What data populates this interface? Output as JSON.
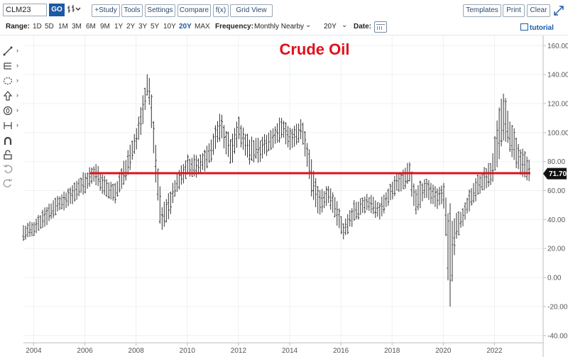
{
  "toolbar": {
    "symbol_value": "CLM23",
    "go_label": "GO",
    "study_label": "+Study",
    "tools_label": "Tools",
    "settings_label": "Settings",
    "compare_label": "Compare",
    "fx_label": "f(x)",
    "gridview_label": "Grid View",
    "templates_label": "Templates",
    "print_label": "Print",
    "clear_label": "Clear"
  },
  "rangebar": {
    "range_label": "Range:",
    "ranges": [
      "1D",
      "5D",
      "1M",
      "3M",
      "6M",
      "9M",
      "1Y",
      "2Y",
      "3Y",
      "5Y",
      "10Y",
      "20Y",
      "MAX"
    ],
    "active_range": "20Y",
    "frequency_label": "Frequency:",
    "frequency_value": "Monthly Nearby",
    "period_value": "20Y",
    "date_label": "Date:",
    "tutorial_label": "tutorial"
  },
  "left_tools": [
    "line-tool-icon",
    "fibonacci-tool-icon",
    "shape-tool-icon",
    "arrow-tool-icon",
    "annotation-tool-icon",
    "measure-tool-icon",
    "magnet-icon",
    "lock-icon",
    "undo-icon",
    "redo-icon"
  ],
  "chart_data": {
    "type": "ohlc",
    "title": "Crude Oil",
    "x_tick_labels": [
      "2004",
      "2006",
      "2008",
      "2010",
      "2012",
      "2014",
      "2016",
      "2018",
      "2020",
      "2022"
    ],
    "y_tick_labels": [
      "160.00",
      "140.00",
      "120.00",
      "100.00",
      "80.00",
      "60.00",
      "40.00",
      "20.00",
      "0.00",
      "-20.00",
      "-40.00"
    ],
    "ylim": [
      -45,
      167
    ],
    "xlim": [
      2003.6,
      2023.9
    ],
    "last_price_label": "71.70",
    "horizontal_line": {
      "x_start": 2006.2,
      "x_end": 2023.4,
      "y": 72,
      "color": "#e0101c"
    },
    "title_color": "#e0101c",
    "bar_color": "#333333",
    "anchors": [
      [
        2003.6,
        31,
        8
      ],
      [
        2004.0,
        34,
        8
      ],
      [
        2004.5,
        43,
        10
      ],
      [
        2004.9,
        50,
        9
      ],
      [
        2005.3,
        53,
        10
      ],
      [
        2005.8,
        63,
        11
      ],
      [
        2006.4,
        72,
        11
      ],
      [
        2006.9,
        60,
        10
      ],
      [
        2007.2,
        58,
        11
      ],
      [
        2007.7,
        80,
        12
      ],
      [
        2008.0,
        95,
        14
      ],
      [
        2008.3,
        118,
        15
      ],
      [
        2008.45,
        135,
        16
      ],
      [
        2008.55,
        125,
        16
      ],
      [
        2008.8,
        70,
        22
      ],
      [
        2009.0,
        40,
        15
      ],
      [
        2009.2,
        45,
        14
      ],
      [
        2009.6,
        66,
        12
      ],
      [
        2010.0,
        77,
        11
      ],
      [
        2010.4,
        76,
        12
      ],
      [
        2010.9,
        86,
        12
      ],
      [
        2011.3,
        105,
        14
      ],
      [
        2011.7,
        86,
        14
      ],
      [
        2012.0,
        102,
        13
      ],
      [
        2012.4,
        88,
        14
      ],
      [
        2012.8,
        88,
        12
      ],
      [
        2013.2,
        93,
        12
      ],
      [
        2013.7,
        104,
        12
      ],
      [
        2014.0,
        96,
        11
      ],
      [
        2014.5,
        102,
        12
      ],
      [
        2014.9,
        65,
        20
      ],
      [
        2015.2,
        50,
        13
      ],
      [
        2015.5,
        58,
        11
      ],
      [
        2015.9,
        42,
        12
      ],
      [
        2016.1,
        32,
        10
      ],
      [
        2016.5,
        45,
        11
      ],
      [
        2017.0,
        52,
        10
      ],
      [
        2017.5,
        46,
        10
      ],
      [
        2017.9,
        58,
        10
      ],
      [
        2018.2,
        65,
        10
      ],
      [
        2018.7,
        72,
        12
      ],
      [
        2018.9,
        52,
        15
      ],
      [
        2019.3,
        62,
        12
      ],
      [
        2019.8,
        55,
        11
      ],
      [
        2020.0,
        58,
        12
      ],
      [
        2020.1,
        40,
        25
      ],
      [
        2020.25,
        10,
        60
      ],
      [
        2020.45,
        32,
        18
      ],
      [
        2020.7,
        40,
        10
      ],
      [
        2021.0,
        52,
        11
      ],
      [
        2021.4,
        65,
        12
      ],
      [
        2021.9,
        72,
        13
      ],
      [
        2022.15,
        100,
        30
      ],
      [
        2022.4,
        110,
        25
      ],
      [
        2022.6,
        98,
        20
      ],
      [
        2022.9,
        85,
        15
      ],
      [
        2023.2,
        76,
        15
      ],
      [
        2023.4,
        72,
        14
      ]
    ]
  }
}
